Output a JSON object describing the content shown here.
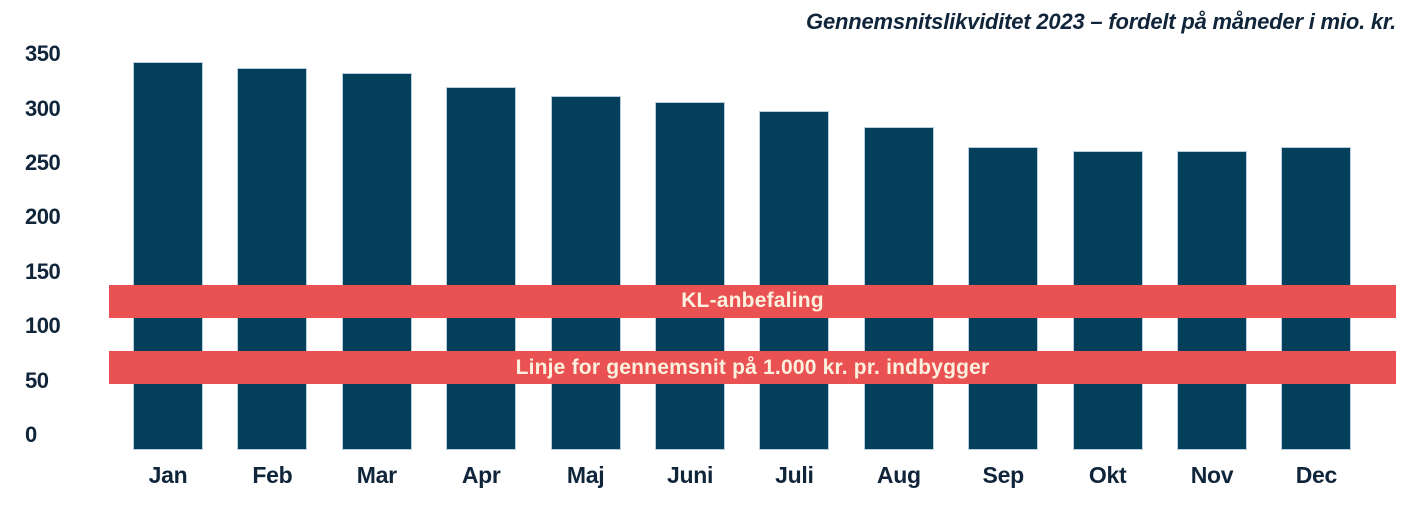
{
  "title": "Gennemsnitslikviditet 2023 – fordelt på måneder i mio. kr.",
  "chart_data": {
    "type": "bar",
    "title": "Gennemsnitslikviditet 2023 – fordelt på måneder i mio. kr.",
    "categories": [
      "Jan",
      "Feb",
      "Mar",
      "Apr",
      "Maj",
      "Juni",
      "Juli",
      "Aug",
      "Sep",
      "Okt",
      "Nov",
      "Dec"
    ],
    "values": [
      343,
      337,
      333,
      320,
      312,
      306,
      298,
      283,
      265,
      261,
      261,
      265
    ],
    "xlabel": "",
    "ylabel": "",
    "ylim": [
      0,
      350
    ],
    "y_ticks": [
      0,
      50,
      100,
      150,
      200,
      250,
      300,
      350
    ],
    "grid": false,
    "legend": false,
    "reference_bands": [
      {
        "label": "KL-anbefaling",
        "center_value": 122,
        "value_range": [
          108,
          138
        ]
      },
      {
        "label": "Linje for gennemsnit på 1.000 kr. pr. indbygger",
        "center_value": 62,
        "value_range": [
          47,
          77
        ]
      }
    ]
  },
  "colors": {
    "bar_fill": "#04405c",
    "bar_border": "#b7cedc",
    "band_fill": "#ea5153",
    "band_text": "#fbf1de",
    "axis_text": "#10253a",
    "title_text": "#10253a"
  }
}
